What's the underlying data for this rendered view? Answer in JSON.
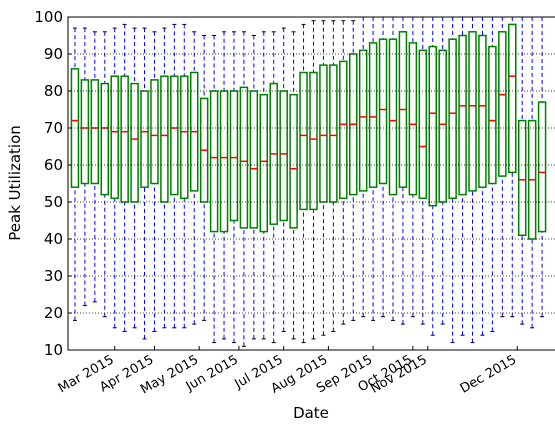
{
  "chart_data": {
    "type": "box",
    "ylabel": "Peak Utilization",
    "xlabel": "Date",
    "ylim": [
      10,
      100
    ],
    "yticks": [
      10,
      20,
      30,
      40,
      50,
      60,
      70,
      80,
      90,
      100
    ],
    "grid": true,
    "xlim": [
      -0.7,
      48.3
    ],
    "xticks": [
      {
        "value": 4,
        "label": "Mar 2015"
      },
      {
        "value": 8,
        "label": "Apr 2015"
      },
      {
        "value": 12.5,
        "label": "May 2015"
      },
      {
        "value": 16.5,
        "label": "Jun 2015"
      },
      {
        "value": 21,
        "label": "Jul 2015"
      },
      {
        "value": 25.5,
        "label": "Aug 2015"
      },
      {
        "value": 30,
        "label": "Sep 2015"
      },
      {
        "value": 34,
        "label": "Oct 2015"
      },
      {
        "value": 35.5,
        "label": "Nov 2015"
      },
      {
        "value": 44.5,
        "label": "Dec 2015"
      }
    ],
    "box_color": "#008000",
    "median_color": "#ff0000",
    "whisker_color": "#0000ff",
    "q3": [
      86,
      83,
      83,
      82,
      84,
      84,
      82,
      80,
      83,
      84,
      84,
      84,
      85,
      78,
      80,
      80,
      80,
      81,
      80,
      79,
      82,
      80,
      79,
      85,
      85,
      87,
      87,
      88,
      90,
      91,
      93,
      94,
      94,
      96,
      93,
      91,
      92,
      91,
      94,
      95,
      96,
      95,
      92,
      96,
      98,
      72,
      72,
      77
    ],
    "median": [
      72,
      70,
      70,
      70,
      69,
      69,
      67,
      69,
      68,
      68,
      70,
      69,
      69,
      64,
      62,
      62,
      62,
      61,
      59,
      61,
      63,
      63,
      59,
      68,
      67,
      68,
      68,
      71,
      71,
      73,
      73,
      75,
      72,
      75,
      71,
      65,
      74,
      71,
      74,
      76,
      76,
      76,
      72,
      79,
      84,
      56,
      56,
      58
    ],
    "q1": [
      54,
      55,
      55,
      52,
      51,
      50,
      50,
      54,
      55,
      50,
      52,
      51,
      53,
      50,
      42,
      42,
      45,
      43,
      43,
      42,
      44,
      45,
      43,
      48,
      48,
      50,
      50,
      51,
      52,
      53,
      54,
      55,
      52,
      54,
      52,
      51,
      49,
      50,
      51,
      52,
      53,
      54,
      55,
      57,
      58,
      41,
      40,
      42
    ],
    "whislo": [
      18,
      22,
      23,
      19,
      16,
      15,
      16,
      13,
      15,
      16,
      16,
      16,
      17,
      18,
      12,
      13,
      12,
      11,
      13,
      13,
      12,
      15,
      13,
      12,
      13,
      14,
      15,
      17,
      18,
      19,
      18,
      19,
      18,
      17,
      19,
      17,
      14,
      17,
      12,
      14,
      12,
      14,
      15,
      19,
      19,
      17,
      16,
      19
    ],
    "whishi": [
      97,
      97,
      96,
      96,
      97,
      98,
      97,
      97,
      96,
      97,
      98,
      98,
      96,
      95,
      95,
      96,
      96,
      96,
      95,
      96,
      96,
      97,
      96,
      98,
      99,
      99,
      99,
      99,
      99,
      100,
      100,
      100,
      100,
      100,
      100,
      100,
      100,
      100,
      100,
      100,
      100,
      100,
      100,
      100,
      100,
      100,
      100,
      100
    ]
  }
}
